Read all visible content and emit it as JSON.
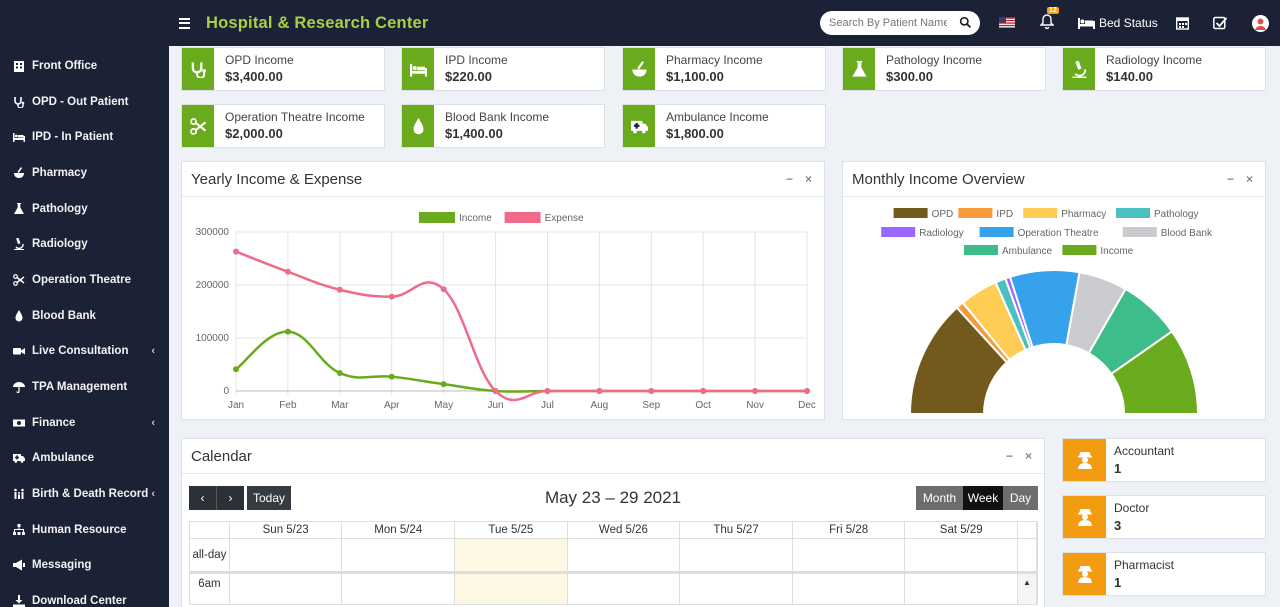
{
  "header": {
    "brand": "Hospital & Research Center",
    "search_placeholder": "Search By Patient Name",
    "notification_count": "12",
    "bed_status": "Bed Status"
  },
  "sidebar": {
    "items": [
      {
        "label": "Front Office",
        "icon": "building-icon"
      },
      {
        "label": "OPD - Out Patient",
        "icon": "stethoscope-icon"
      },
      {
        "label": "IPD - In Patient",
        "icon": "bed-icon"
      },
      {
        "label": "Pharmacy",
        "icon": "mortar-icon"
      },
      {
        "label": "Pathology",
        "icon": "flask-icon"
      },
      {
        "label": "Radiology",
        "icon": "microscope-icon"
      },
      {
        "label": "Operation Theatre",
        "icon": "scissors-icon"
      },
      {
        "label": "Blood Bank",
        "icon": "drop-icon"
      },
      {
        "label": "Live Consultation",
        "icon": "video-icon",
        "has_caret": true
      },
      {
        "label": "TPA Management",
        "icon": "umbrella-icon"
      },
      {
        "label": "Finance",
        "icon": "money-icon",
        "has_caret": true
      },
      {
        "label": "Ambulance",
        "icon": "ambulance-icon"
      },
      {
        "label": "Birth & Death Record",
        "icon": "family-icon",
        "has_caret": true
      },
      {
        "label": "Human Resource",
        "icon": "sitemap-icon"
      },
      {
        "label": "Messaging",
        "icon": "bullhorn-icon"
      },
      {
        "label": "Download Center",
        "icon": "download-icon"
      }
    ]
  },
  "stats": [
    {
      "label": "OPD Income",
      "value": "$3,400.00",
      "icon": "stethoscope-icon"
    },
    {
      "label": "IPD Income",
      "value": "$220.00",
      "icon": "bed-icon"
    },
    {
      "label": "Pharmacy Income",
      "value": "$1,100.00",
      "icon": "mortar-icon"
    },
    {
      "label": "Pathology Income",
      "value": "$300.00",
      "icon": "flask-icon"
    },
    {
      "label": "Radiology Income",
      "value": "$140.00",
      "icon": "microscope-icon"
    },
    {
      "label": "Operation Theatre Income",
      "value": "$2,000.00",
      "icon": "scissors-icon"
    },
    {
      "label": "Blood Bank Income",
      "value": "$1,400.00",
      "icon": "drop-icon"
    },
    {
      "label": "Ambulance Income",
      "value": "$1,800.00",
      "icon": "ambulance-icon"
    }
  ],
  "panels": {
    "yearly_title": "Yearly Income & Expense",
    "monthly_title": "Monthly Income Overview",
    "calendar_title": "Calendar",
    "minimize": "−",
    "close": "×"
  },
  "chart_data": [
    {
      "type": "line",
      "title": "Yearly Income & Expense",
      "x": [
        "Jan",
        "Feb",
        "Mar",
        "Apr",
        "May",
        "Jun",
        "Jul",
        "Aug",
        "Sep",
        "Oct",
        "Nov",
        "Dec"
      ],
      "ylim": [
        0,
        300000
      ],
      "yticks": [
        "0",
        "100000",
        "200000",
        "300000"
      ],
      "legend_position": "top",
      "grid": true,
      "series": [
        {
          "name": "Income",
          "color": "#6aaa1d",
          "values": [
            41000,
            112000,
            34000,
            27000,
            13000,
            0,
            0,
            0,
            0,
            0,
            0,
            0
          ]
        },
        {
          "name": "Expense",
          "color": "#f06b8a",
          "values": [
            263000,
            225000,
            191000,
            178000,
            192000,
            0,
            0,
            0,
            0,
            0,
            0,
            0
          ]
        }
      ]
    },
    {
      "type": "pie",
      "title": "Monthly Income Overview",
      "style": "half-doughnut",
      "legend_position": "top",
      "categories": [
        "OPD",
        "IPD",
        "Pharmacy",
        "Pathology",
        "Radiology",
        "Operation Theatre",
        "Blood Bank",
        "Ambulance",
        "Income"
      ],
      "colors": [
        "#73591c",
        "#f79a3b",
        "#ffcd56",
        "#4bc0c0",
        "#9966ff",
        "#36a2eb",
        "#c9cbcf",
        "#3dbd8a",
        "#6aaa1d"
      ],
      "values": [
        3400,
        220,
        1100,
        300,
        140,
        2000,
        1400,
        1800,
        2500
      ]
    }
  ],
  "calendar": {
    "today_label": "Today",
    "prev": "‹",
    "next": "›",
    "range": "May 23 – 29 2021",
    "views": [
      "Month",
      "Week",
      "Day"
    ],
    "active_view": "Week",
    "days": [
      "Sun 5/23",
      "Mon 5/24",
      "Tue 5/25",
      "Wed 5/26",
      "Thu 5/27",
      "Fri 5/28",
      "Sat 5/29"
    ],
    "allday_label": "all-day",
    "first_slot": "6am"
  },
  "staff": [
    {
      "label": "Accountant",
      "value": "1"
    },
    {
      "label": "Doctor",
      "value": "3"
    },
    {
      "label": "Pharmacist",
      "value": "1"
    }
  ]
}
